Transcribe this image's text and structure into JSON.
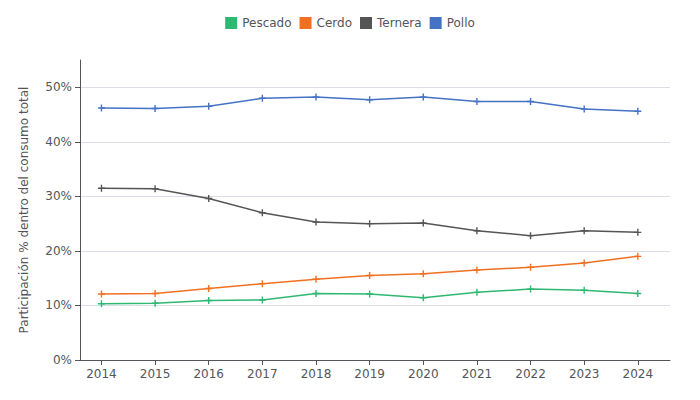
{
  "chart_data": {
    "type": "line",
    "x": [
      2014,
      2015,
      2016,
      2017,
      2018,
      2019,
      2020,
      2021,
      2022,
      2023,
      2024
    ],
    "series": [
      {
        "name": "Pollo",
        "color": "#4472c4",
        "values": [
          0.462,
          0.461,
          0.465,
          0.48,
          0.482,
          0.477,
          0.482,
          0.474,
          0.474,
          0.46,
          0.456
        ]
      },
      {
        "name": "Ternera",
        "color": "#555555",
        "values": [
          0.315,
          0.314,
          0.296,
          0.27,
          0.253,
          0.25,
          0.251,
          0.237,
          0.228,
          0.237,
          0.234
        ]
      },
      {
        "name": "Cerdo",
        "color": "#f07020",
        "values": [
          0.121,
          0.122,
          0.131,
          0.14,
          0.148,
          0.155,
          0.158,
          0.165,
          0.17,
          0.178,
          0.19
        ]
      },
      {
        "name": "Pescado",
        "color": "#2eb872",
        "values": [
          0.103,
          0.104,
          0.109,
          0.11,
          0.122,
          0.121,
          0.114,
          0.124,
          0.13,
          0.128,
          0.122
        ]
      }
    ],
    "ylabel": "Participación % dentro del consumo total",
    "xlim": [
      2013.6,
      2024.6
    ],
    "xticks": [
      2014,
      2015,
      2016,
      2017,
      2018,
      2019,
      2020,
      2021,
      2022,
      2023,
      2024
    ],
    "ylim": [
      0,
      0.55
    ],
    "yticks": [
      {
        "value": 0.0,
        "label": "0%"
      },
      {
        "value": 0.1,
        "label": "10%"
      },
      {
        "value": 0.2,
        "label": "20%"
      },
      {
        "value": 0.3,
        "label": "30%"
      },
      {
        "value": 0.4,
        "label": "40%"
      },
      {
        "value": 0.5,
        "label": "50%"
      }
    ],
    "grid": true,
    "legend": "top",
    "marker": "plus"
  }
}
